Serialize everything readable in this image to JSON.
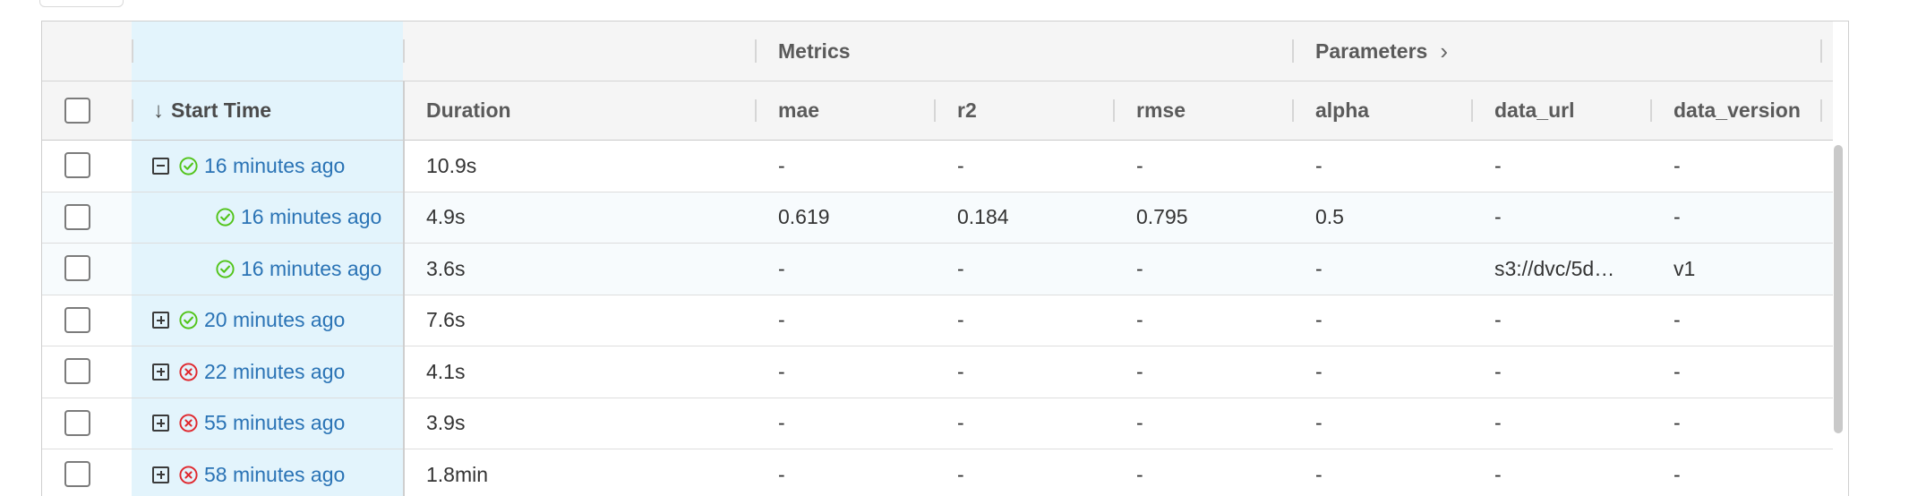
{
  "header": {
    "groups": {
      "metrics_label": "Metrics",
      "parameters_label": "Parameters",
      "parameters_chevron": "›"
    },
    "columns": {
      "start_time": "Start Time",
      "sort_arrow": "↓",
      "duration": "Duration",
      "mae": "mae",
      "r2": "r2",
      "rmse": "rmse",
      "alpha": "alpha",
      "data_url": "data_url",
      "data_version": "data_version"
    }
  },
  "status_colors": {
    "success": "#52c41a",
    "failed": "#e0282e",
    "link": "#2a73b5"
  },
  "rows": [
    {
      "start_time": "16 minutes ago",
      "duration": "10.9s",
      "mae": "-",
      "r2": "-",
      "rmse": "-",
      "alpha": "-",
      "data_url": "-",
      "data_version": "-",
      "status": "success",
      "expander": "minus",
      "child": false
    },
    {
      "start_time": "16 minutes ago",
      "duration": "4.9s",
      "mae": "0.619",
      "r2": "0.184",
      "rmse": "0.795",
      "alpha": "0.5",
      "data_url": "-",
      "data_version": "-",
      "status": "success",
      "expander": "none",
      "child": true
    },
    {
      "start_time": "16 minutes ago",
      "duration": "3.6s",
      "mae": "-",
      "r2": "-",
      "rmse": "-",
      "alpha": "-",
      "data_url": "s3://dvc/5d…",
      "data_version": "v1",
      "status": "success",
      "expander": "none",
      "child": true
    },
    {
      "start_time": "20 minutes ago",
      "duration": "7.6s",
      "mae": "-",
      "r2": "-",
      "rmse": "-",
      "alpha": "-",
      "data_url": "-",
      "data_version": "-",
      "status": "success",
      "expander": "plus",
      "child": false
    },
    {
      "start_time": "22 minutes ago",
      "duration": "4.1s",
      "mae": "-",
      "r2": "-",
      "rmse": "-",
      "alpha": "-",
      "data_url": "-",
      "data_version": "-",
      "status": "failed",
      "expander": "plus",
      "child": false
    },
    {
      "start_time": "55 minutes ago",
      "duration": "3.9s",
      "mae": "-",
      "r2": "-",
      "rmse": "-",
      "alpha": "-",
      "data_url": "-",
      "data_version": "-",
      "status": "failed",
      "expander": "plus",
      "child": false
    },
    {
      "start_time": "58 minutes ago",
      "duration": "1.8min",
      "mae": "-",
      "r2": "-",
      "rmse": "-",
      "alpha": "-",
      "data_url": "-",
      "data_version": "-",
      "status": "failed",
      "expander": "plus",
      "child": false
    }
  ]
}
